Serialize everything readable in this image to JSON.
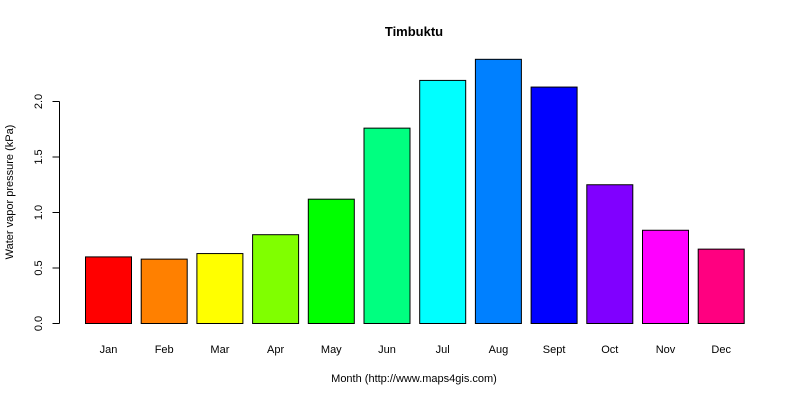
{
  "chart_data": {
    "type": "bar",
    "title": "Timbuktu",
    "xlabel": "Month (http://www.maps4gis.com)",
    "ylabel": "Water vapor pressure (kPa)",
    "categories": [
      "Jan",
      "Feb",
      "Mar",
      "Apr",
      "May",
      "Jun",
      "Jul",
      "Aug",
      "Sept",
      "Oct",
      "Nov",
      "Dec"
    ],
    "values": [
      0.6,
      0.58,
      0.63,
      0.8,
      1.12,
      1.76,
      2.19,
      2.38,
      2.13,
      1.25,
      0.84,
      0.67
    ],
    "colors": [
      "#FF0000",
      "#FF8000",
      "#FFFF00",
      "#80FF00",
      "#00FF00",
      "#00FF80",
      "#00FFFF",
      "#0080FF",
      "#0000FF",
      "#8000FF",
      "#FF00FF",
      "#FF0080"
    ],
    "yticks": [
      0.0,
      0.5,
      1.0,
      1.5,
      2.0
    ],
    "ytick_labels": [
      "0.0",
      "0.5",
      "1.0",
      "1.5",
      "2.0"
    ],
    "ylim": [
      0,
      2.5
    ],
    "grid": false,
    "legend": "none"
  }
}
